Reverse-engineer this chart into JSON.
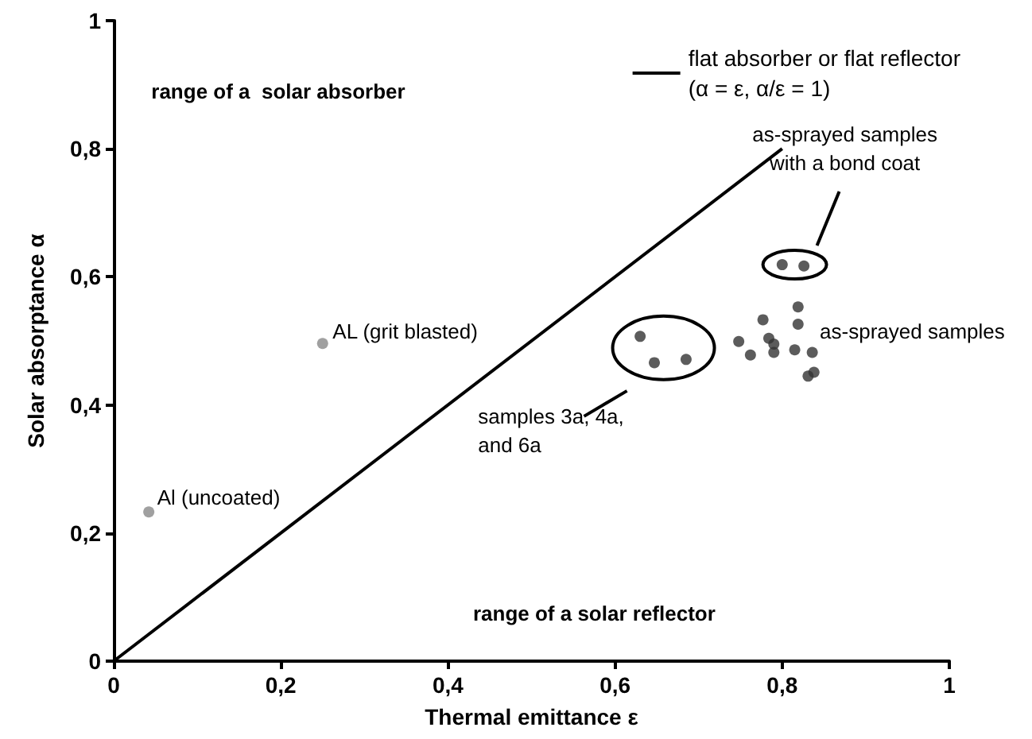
{
  "chart_data": {
    "type": "scatter",
    "xlabel": "Thermal emittance ε",
    "ylabel": "Solar absorptance α",
    "xlim": [
      0,
      1
    ],
    "ylim": [
      0,
      1
    ],
    "xticks": [
      0,
      {
        "value": 0.2,
        "label": "0,2"
      },
      {
        "value": 0.4,
        "label": "0,4"
      },
      {
        "value": 0.6,
        "label": "0,6"
      },
      {
        "value": 0.8,
        "label": "0,8"
      },
      1
    ],
    "yticks": [
      0,
      {
        "value": 0.2,
        "label": "0,2"
      },
      {
        "value": 0.4,
        "label": "0,4"
      },
      {
        "value": 0.6,
        "label": "0,6"
      },
      {
        "value": 0.8,
        "label": "0,8"
      },
      1
    ],
    "legend": "top right",
    "marker": "circle",
    "series": [
      {
        "name": "flat absorber or flat reflector\n(α = ε, α/ε = 1)",
        "type": "line",
        "marker": "none",
        "color": "#000000",
        "line_style": "solid",
        "x": [
          0,
          0.8
        ],
        "values": [
          0,
          0.8
        ]
      },
      {
        "color": "#888888",
        "x": [
          0.042,
          0.25
        ],
        "values": [
          0.233,
          0.496
        ]
      },
      {
        "color": "#333333",
        "x": [
          0.63,
          0.647,
          0.685
        ],
        "values": [
          0.507,
          0.466,
          0.471
        ]
      },
      {
        "color": "#333333",
        "x": [
          0.8,
          0.826
        ],
        "values": [
          0.619,
          0.617
        ]
      },
      {
        "color": "#333333",
        "x": [
          0.819,
          0.777,
          0.819,
          0.748,
          0.784,
          0.79,
          0.762,
          0.79,
          0.815,
          0.836,
          0.831,
          0.838
        ],
        "values": [
          0.553,
          0.533,
          0.526,
          0.499,
          0.504,
          0.495,
          0.478,
          0.482,
          0.486,
          0.482,
          0.445,
          0.451
        ]
      }
    ],
    "annotations": [
      "range of a  solar absorber",
      "range of a solar reflector",
      "Al (uncoated)",
      "AL (grit blasted)",
      "samples 3a, 4a,\nand 6a",
      "as-sprayed samples",
      "as-sprayed samples\nwith a bond coat"
    ]
  }
}
